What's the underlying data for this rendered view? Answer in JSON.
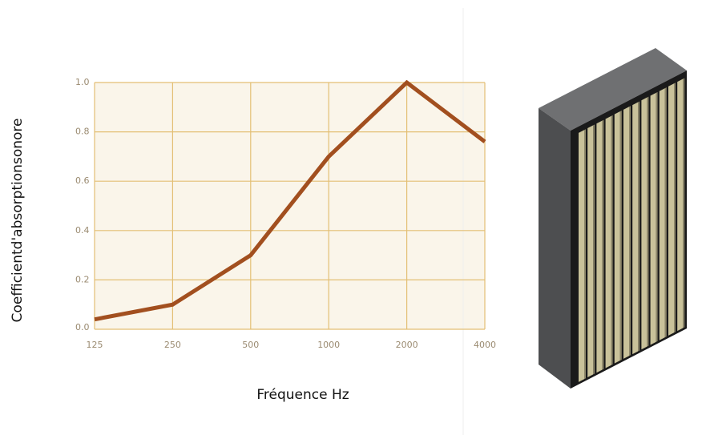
{
  "chart_data": {
    "type": "line",
    "y_label": "Coefficientd'absorptionsonore",
    "x_label": "Fréquence Hz",
    "categories": [
      "125",
      "250",
      "500",
      "1000",
      "2000",
      "4000"
    ],
    "values": [
      0.04,
      0.1,
      0.3,
      0.7,
      1.0,
      0.76
    ],
    "color": "#a24f1f",
    "ylim": [
      0,
      1
    ],
    "yticks": [
      {
        "value": 0,
        "label": "0.0"
      },
      0.2,
      0.4,
      0.6,
      0.8,
      {
        "value": 1,
        "label": "1.0"
      }
    ],
    "grid": true
  }
}
